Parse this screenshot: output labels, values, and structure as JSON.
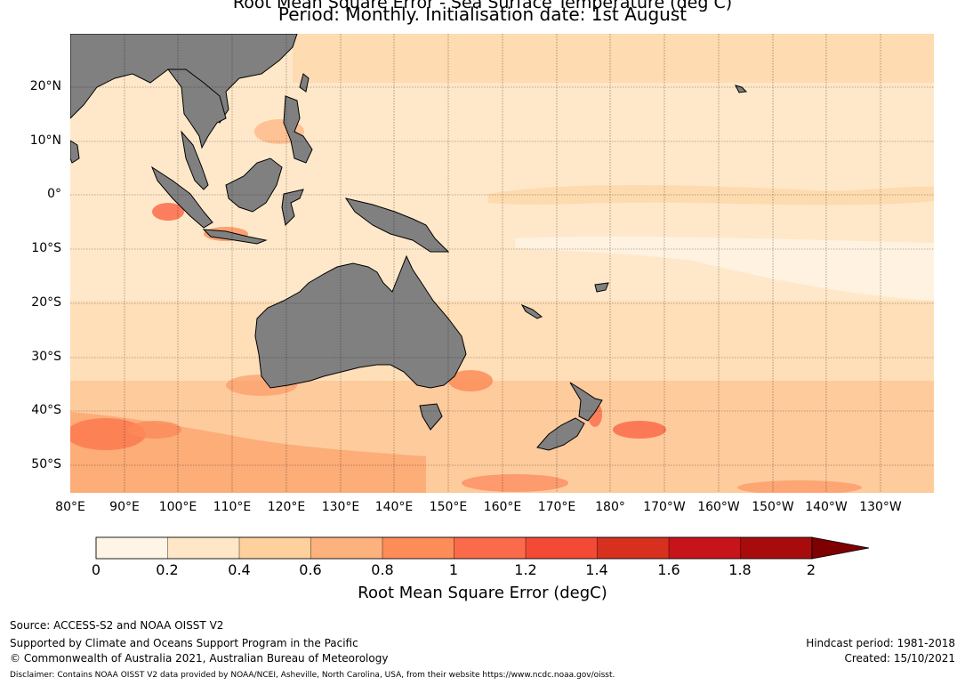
{
  "title_line1": "Root Mean Square Error - Sea Surface Temperature (deg C)",
  "title_line2": "Period: Monthly. Initialisation date: 1st August",
  "lat_labels": [
    "20°N",
    "10°N",
    "0°",
    "10°S",
    "20°S",
    "30°S",
    "40°S",
    "50°S"
  ],
  "lon_labels": [
    "80°E",
    "90°E",
    "100°E",
    "110°E",
    "120°E",
    "130°E",
    "140°E",
    "150°E",
    "160°E",
    "170°E",
    "180°",
    "170°W",
    "160°W",
    "150°W",
    "140°W",
    "130°W"
  ],
  "colorbar": {
    "label": "Root Mean Square Error (degC)",
    "ticks": [
      "0",
      "0.2",
      "0.4",
      "0.6",
      "0.8",
      "1",
      "1.2",
      "1.4",
      "1.6",
      "1.8",
      "2"
    ],
    "colors": [
      "#fff5e6",
      "#fee6c6",
      "#fdd09c",
      "#fdb27e",
      "#fc8d59",
      "#fb6b4b",
      "#f34a36",
      "#d7301f",
      "#c7141b",
      "#a80b0b",
      "#7f0000"
    ],
    "extend": "max"
  },
  "colors": {
    "land": "#808080",
    "ocean_base": "#fee8c9"
  },
  "footer": {
    "source": "Source: ACCESS-S2 and NOAA OISST V2",
    "support": "Supported by Climate and Oceans Support Program in the Pacific",
    "copyright": "© Commonwealth of Australia 2021, Australian Bureau of Meteorology",
    "hindcast": "Hindcast period: 1981-2018",
    "created": "Created: 15/10/2021",
    "disclaimer": "Disclaimer: Contains NOAA OISST V2 data provided by NOAA/NCEI, Asheville, North Carolina, USA, from their website https://www.ncdc.noaa.gov/oisst."
  }
}
